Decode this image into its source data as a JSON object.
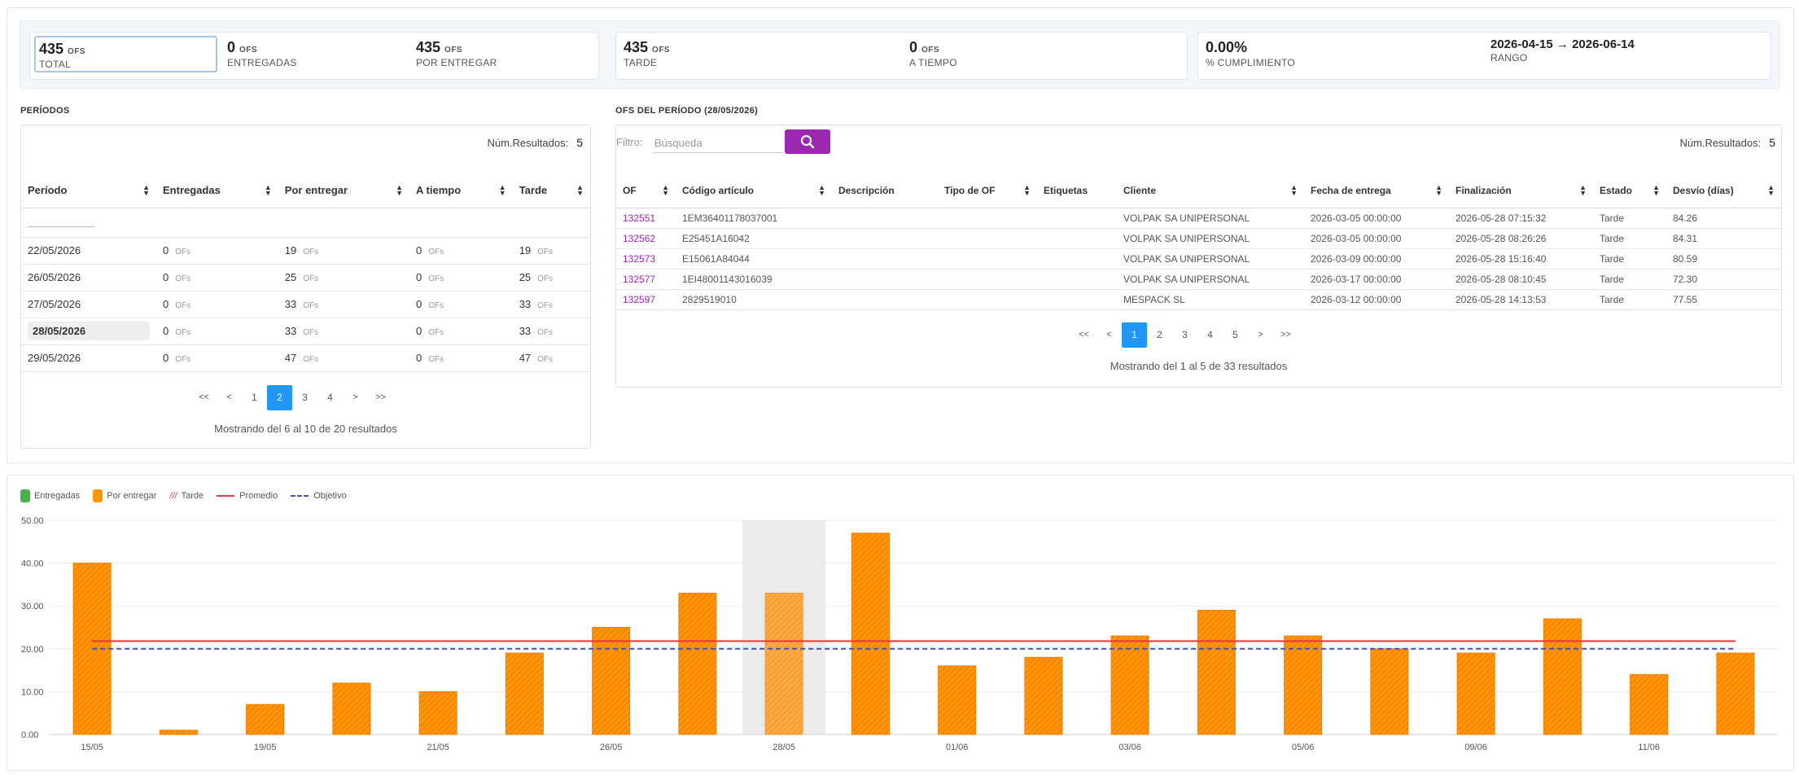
{
  "kpis": {
    "total": {
      "value": "435",
      "unit": "OFS",
      "label": "TOTAL"
    },
    "entregadas": {
      "value": "0",
      "unit": "OFS",
      "label": "ENTREGADAS"
    },
    "por_entregar": {
      "value": "435",
      "unit": "OFS",
      "label": "POR ENTREGAR"
    },
    "tarde": {
      "value": "435",
      "unit": "OFS",
      "label": "TARDE"
    },
    "a_tiempo": {
      "value": "0",
      "unit": "OFS",
      "label": "A TIEMPO"
    },
    "cumplimiento": {
      "value": "0.00%",
      "label": "% CUMPLIMIENTO"
    },
    "rango": {
      "value": "2026-04-15 → 2026-06-14",
      "label": "RANGO"
    }
  },
  "periodos": {
    "title": "PERÍODOS",
    "num_results_label": "Núm.Resultados:",
    "num_results_value": "5",
    "columns": [
      "Período",
      "Entregadas",
      "Por entregar",
      "A tiempo",
      "Tarde"
    ],
    "unit": "OFs",
    "rows": [
      {
        "periodo": "22/05/2026",
        "entregadas": "0",
        "por_entregar": "19",
        "a_tiempo": "0",
        "tarde": "19",
        "selected": false
      },
      {
        "periodo": "26/05/2026",
        "entregadas": "0",
        "por_entregar": "25",
        "a_tiempo": "0",
        "tarde": "25",
        "selected": false
      },
      {
        "periodo": "27/05/2026",
        "entregadas": "0",
        "por_entregar": "33",
        "a_tiempo": "0",
        "tarde": "33",
        "selected": false
      },
      {
        "periodo": "28/05/2026",
        "entregadas": "0",
        "por_entregar": "33",
        "a_tiempo": "0",
        "tarde": "33",
        "selected": true
      },
      {
        "periodo": "29/05/2026",
        "entregadas": "0",
        "por_entregar": "47",
        "a_tiempo": "0",
        "tarde": "47",
        "selected": false
      }
    ],
    "pager": {
      "first": "<<",
      "prev": "<",
      "pages": [
        "1",
        "2",
        "3",
        "4"
      ],
      "active": "2",
      "next": ">",
      "last": ">>"
    },
    "showing": "Mostrando del 6 al 10 de 20 resultados"
  },
  "ofs": {
    "title": "OFS DEL PERÍODO (28/05/2026)",
    "filter_label": "Filtro:",
    "search_placeholder": "Búsqueda",
    "num_results_label": "Núm.Resultados:",
    "num_results_value": "5",
    "columns": [
      "OF",
      "Código artículo",
      "Descripción",
      "Tipo de OF",
      "Etiquetas",
      "Cliente",
      "Fecha de entrega",
      "Finalización",
      "Estado",
      "Desvío (días)"
    ],
    "rows": [
      {
        "of": "132551",
        "codigo": "1EM36401178037001",
        "descripcion": "",
        "tipo": "",
        "etiquetas": "",
        "cliente": "VOLPAK SA UNIPERSONAL",
        "fecha": "2026-03-05 00:00:00",
        "fin": "2026-05-28 07:15:32",
        "estado": "Tarde",
        "desvio": "84.26"
      },
      {
        "of": "132562",
        "codigo": "E25451A16042",
        "descripcion": "",
        "tipo": "",
        "etiquetas": "",
        "cliente": "VOLPAK SA UNIPERSONAL",
        "fecha": "2026-03-05 00:00:00",
        "fin": "2026-05-28 08:26:26",
        "estado": "Tarde",
        "desvio": "84.31"
      },
      {
        "of": "132573",
        "codigo": "E15061A84044",
        "descripcion": "",
        "tipo": "",
        "etiquetas": "",
        "cliente": "VOLPAK SA UNIPERSONAL",
        "fecha": "2026-03-09 00:00:00",
        "fin": "2026-05-28 15:16:40",
        "estado": "Tarde",
        "desvio": "80.59"
      },
      {
        "of": "132577",
        "codigo": "1EI48001143016039",
        "descripcion": "",
        "tipo": "",
        "etiquetas": "",
        "cliente": "VOLPAK SA UNIPERSONAL",
        "fecha": "2026-03-17 00:00:00",
        "fin": "2026-05-28 08:10:45",
        "estado": "Tarde",
        "desvio": "72.30"
      },
      {
        "of": "132597",
        "codigo": "2829519010",
        "descripcion": "",
        "tipo": "",
        "etiquetas": "",
        "cliente": "MESPACK SL",
        "fecha": "2026-03-12 00:00:00",
        "fin": "2026-05-28 14:13:53",
        "estado": "Tarde",
        "desvio": "77.55"
      }
    ],
    "pager": {
      "first": "<<",
      "prev": "<",
      "pages": [
        "1",
        "2",
        "3",
        "4",
        "5"
      ],
      "active": "1",
      "next": ">",
      "last": ">>"
    },
    "showing": "Mostrando del 1 al 5 de 33 resultados"
  },
  "chart_data": {
    "type": "bar",
    "legend": [
      "Entregadas",
      "Por entregar",
      "Tarde",
      "Promedio",
      "Objetivo"
    ],
    "legend_placement": "top-left",
    "colors": {
      "entregadas": "#4caf50",
      "por_entregar": "#ff9800",
      "tarde": "#e53935",
      "promedio": "#e53935",
      "objetivo": "#3f51b5"
    },
    "categories": [
      "15/05",
      "",
      "19/05",
      "",
      "21/05",
      "",
      "26/05",
      "",
      "28/05",
      "",
      "01/06",
      "",
      "03/06",
      "",
      "05/06",
      "",
      "09/06",
      "",
      "11/06",
      ""
    ],
    "series": [
      {
        "name": "Por entregar",
        "values": [
          40,
          1,
          7,
          12,
          10,
          19,
          25,
          33,
          33,
          47,
          16,
          18,
          23,
          29,
          23,
          20,
          19,
          27,
          14,
          19
        ]
      }
    ],
    "selected_index": 8,
    "promedio": 21.8,
    "objetivo": 20,
    "ylim": [
      0,
      50
    ],
    "yticks": [
      "0.00",
      "10.00",
      "20.00",
      "30.00",
      "40.00",
      "50.00"
    ],
    "grid": true
  }
}
